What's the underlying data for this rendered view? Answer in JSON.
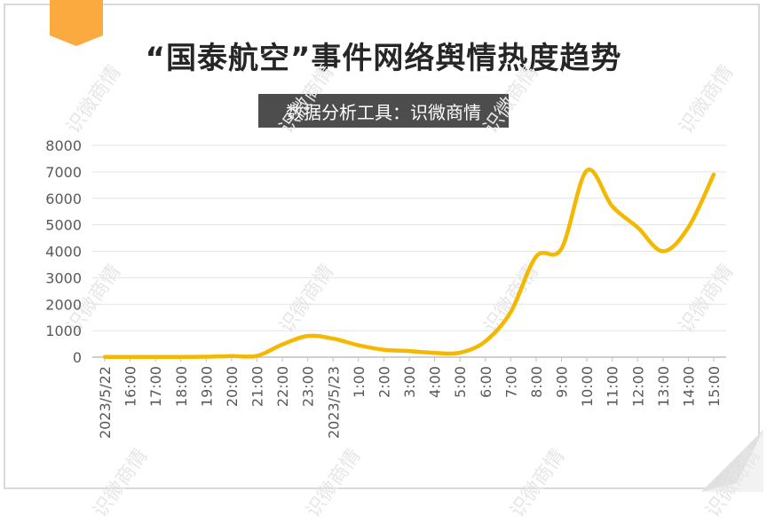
{
  "title": "“国泰航空”事件网络舆情热度趋势",
  "subtitle": "数据分析工具：识微商情",
  "watermark": "识微商情",
  "colors": {
    "line": "#F5B800",
    "ribbon": "#FBAA3F",
    "grid": "#e3e3e3",
    "axis": "#bfbfbf"
  },
  "chart_data": {
    "type": "line",
    "title": "“国泰航空”事件网络舆情热度趋势",
    "xlabel": "",
    "ylabel": "",
    "ylim": [
      0,
      8000
    ],
    "yticks": [
      0,
      1000,
      2000,
      3000,
      4000,
      5000,
      6000,
      7000,
      8000
    ],
    "grid": true,
    "legend": "none",
    "categories": [
      "2023/5/22",
      "16:00",
      "17:00",
      "18:00",
      "19:00",
      "20:00",
      "21:00",
      "22:00",
      "23:00",
      "2023/5/23",
      "1:00",
      "2:00",
      "3:00",
      "4:00",
      "5:00",
      "6:00",
      "7:00",
      "8:00",
      "9:00",
      "10:00",
      "11:00",
      "12:00",
      "13:00",
      "14:00",
      "15:00"
    ],
    "series": [
      {
        "values": [
          10,
          10,
          10,
          10,
          15,
          40,
          50,
          480,
          800,
          700,
          450,
          280,
          230,
          160,
          170,
          600,
          1700,
          3800,
          4100,
          7050,
          5700,
          4900,
          4000,
          4900,
          6900
        ]
      }
    ]
  }
}
